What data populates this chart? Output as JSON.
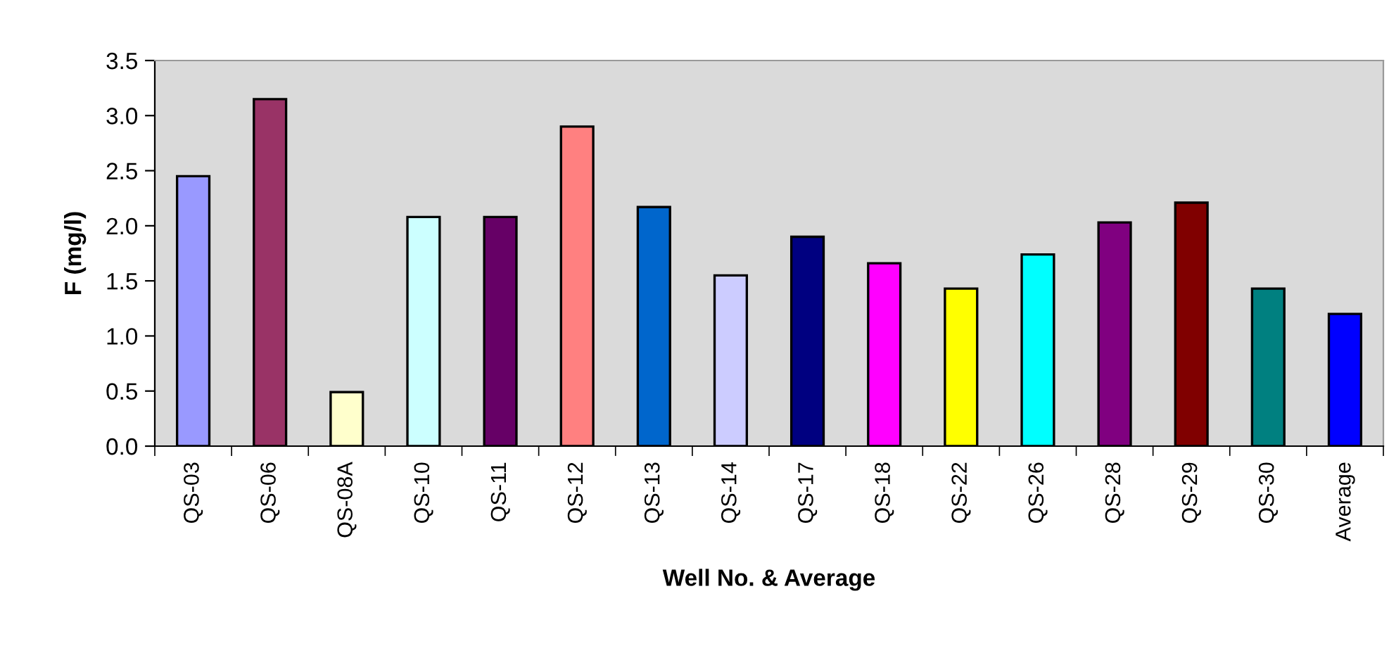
{
  "chart_data": {
    "type": "bar",
    "xlabel": "Well No. & Average",
    "ylabel": "F (mg/l)",
    "categories": [
      "QS-03",
      "QS-06",
      "QS-08A",
      "QS-10",
      "QS-11",
      "QS-12",
      "QS-13",
      "QS-14",
      "QS-17",
      "QS-18",
      "QS-22",
      "QS-26",
      "QS-28",
      "QS-29",
      "QS-30",
      "Average"
    ],
    "values": [
      2.45,
      3.15,
      0.49,
      2.08,
      2.08,
      2.9,
      2.17,
      1.55,
      1.9,
      1.66,
      1.43,
      1.74,
      2.03,
      2.21,
      1.43,
      1.2
    ],
    "colors": [
      "#9999ff",
      "#993366",
      "#ffffcc",
      "#ccffff",
      "#660066",
      "#ff8080",
      "#0066cc",
      "#ccccff",
      "#000080",
      "#ff00ff",
      "#ffff00",
      "#00ffff",
      "#800080",
      "#800000",
      "#008080",
      "#0000ff"
    ],
    "ylim": [
      0,
      3.5
    ],
    "yticks": [
      {
        "value": 0,
        "label": "0.0"
      },
      {
        "value": 0.5,
        "label": "0.5"
      },
      {
        "value": 1,
        "label": "1.0"
      },
      {
        "value": 1.5,
        "label": "1.5"
      },
      {
        "value": 2,
        "label": "2.0"
      },
      {
        "value": 2.5,
        "label": "2.5"
      },
      {
        "value": 3,
        "label": "3.0"
      },
      {
        "value": 3.5,
        "label": "3.5"
      }
    ],
    "grid": false
  }
}
